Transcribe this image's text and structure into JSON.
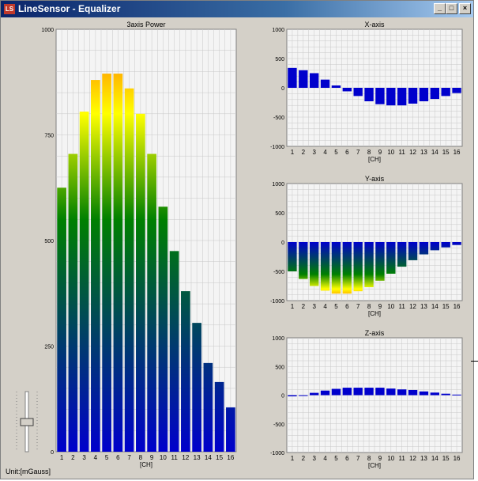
{
  "window": {
    "title": "LineSensor - Equalizer",
    "icon": "app-icon",
    "buttons": [
      "_",
      "□",
      "×"
    ]
  },
  "unit_label": "Unit:[mGauss]",
  "colors": {
    "window_bg": "#d4d0c8",
    "plot_bg": "#f4f4f4",
    "grid": "#c8c8c8",
    "bar_low": "#0000cc",
    "bar_mid": "#008000",
    "bar_mid2": "#ffff00",
    "bar_high": "#ff6600"
  },
  "chart_data": [
    {
      "type": "bar",
      "title": "3axis Power",
      "xlabel": "[CH]",
      "ylabel": "",
      "ylim": [
        0,
        1000
      ],
      "yticks": [
        0,
        250,
        500,
        750,
        1000
      ],
      "categories": [
        "1",
        "2",
        "3",
        "4",
        "5",
        "6",
        "7",
        "8",
        "9",
        "10",
        "11",
        "12",
        "13",
        "14",
        "15",
        "16"
      ],
      "values": [
        625,
        705,
        805,
        880,
        895,
        895,
        860,
        800,
        705,
        580,
        475,
        380,
        305,
        210,
        165,
        105
      ],
      "grid": true,
      "color_mode": "heat"
    },
    {
      "type": "bar",
      "title": "X-axis",
      "xlabel": "[CH]",
      "ylabel": "",
      "ylim": [
        -1000,
        1000
      ],
      "yticks": [
        -1000,
        -500,
        0,
        500,
        1000
      ],
      "categories": [
        "1",
        "2",
        "3",
        "4",
        "5",
        "6",
        "7",
        "8",
        "9",
        "10",
        "11",
        "12",
        "13",
        "14",
        "15",
        "16"
      ],
      "values": [
        340,
        300,
        250,
        140,
        40,
        -60,
        -140,
        -230,
        -280,
        -300,
        -300,
        -270,
        -230,
        -190,
        -140,
        -90
      ],
      "grid": true,
      "color_mode": "blue"
    },
    {
      "type": "bar",
      "title": "Y-axis",
      "xlabel": "[CH]",
      "ylabel": "",
      "ylim": [
        -1000,
        1000
      ],
      "yticks": [
        -1000,
        -500,
        0,
        500,
        1000
      ],
      "categories": [
        "1",
        "2",
        "3",
        "4",
        "5",
        "6",
        "7",
        "8",
        "9",
        "10",
        "11",
        "12",
        "13",
        "14",
        "15",
        "16"
      ],
      "values": [
        -500,
        -630,
        -750,
        -830,
        -880,
        -880,
        -840,
        -770,
        -660,
        -540,
        -420,
        -310,
        -210,
        -140,
        -90,
        -50
      ],
      "grid": true,
      "color_mode": "heat"
    },
    {
      "type": "bar",
      "title": "Z-axis",
      "xlabel": "[CH]",
      "ylabel": "",
      "ylim": [
        -1000,
        1000
      ],
      "yticks": [
        -1000,
        -500,
        0,
        500,
        1000
      ],
      "categories": [
        "1",
        "2",
        "3",
        "4",
        "5",
        "6",
        "7",
        "8",
        "9",
        "10",
        "11",
        "12",
        "13",
        "14",
        "15",
        "16"
      ],
      "values": [
        -20,
        0,
        40,
        80,
        110,
        130,
        130,
        130,
        130,
        115,
        100,
        90,
        65,
        45,
        25,
        10
      ],
      "grid": true,
      "color_mode": "blue"
    }
  ]
}
